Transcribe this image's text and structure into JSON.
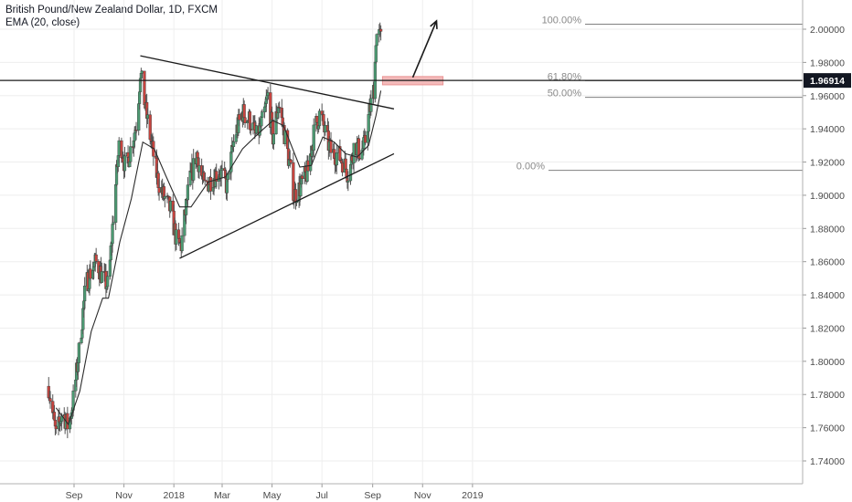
{
  "header": {
    "title": "British Pound/New Zealand Dollar, 1D, FXCM",
    "indicator": "EMA (20, close)"
  },
  "colors": {
    "up_body": "#4c9a72",
    "down_body": "#c7443f",
    "wick": "#555555",
    "ema": "#2b2b2b",
    "trendline": "#1a1a1a",
    "fib_line": "#808080",
    "price_line": "#1a1a1a",
    "price_label_bg": "#131722",
    "zone_fill": "#f2b3b3",
    "zone_stroke": "#e88a8a",
    "grid": "#eeeeee"
  },
  "chart_data": {
    "type": "candlestick",
    "symbol": "GBPNZD",
    "timeframe": "1D",
    "x_range": [
      "2017-08-01",
      "2019-02-20"
    ],
    "ylim": [
      1.728,
      2.012
    ],
    "grid": true,
    "y_ticks": [
      "1.74000",
      "1.76000",
      "1.78000",
      "1.80000",
      "1.82000",
      "1.84000",
      "1.86000",
      "1.88000",
      "1.90000",
      "1.92000",
      "1.94000",
      "1.96000",
      "1.98000",
      "2.00000"
    ],
    "x_ticks": [
      {
        "date": "2017-09-01",
        "label": "Sep"
      },
      {
        "date": "2017-11-01",
        "label": "Nov"
      },
      {
        "date": "2018-01-01",
        "label": "2018"
      },
      {
        "date": "2018-03-01",
        "label": "Mar"
      },
      {
        "date": "2018-05-01",
        "label": "May"
      },
      {
        "date": "2018-07-01",
        "label": "Jul"
      },
      {
        "date": "2018-09-01",
        "label": "Sep"
      },
      {
        "date": "2018-11-01",
        "label": "Nov"
      },
      {
        "date": "2019-01-01",
        "label": "2019"
      }
    ],
    "price_trajectory": [
      [
        "2017-08-01",
        1.785
      ],
      [
        "2017-08-10",
        1.755
      ],
      [
        "2017-08-18",
        1.77
      ],
      [
        "2017-08-25",
        1.76
      ],
      [
        "2017-09-01",
        1.78
      ],
      [
        "2017-09-08",
        1.81
      ],
      [
        "2017-09-15",
        1.845
      ],
      [
        "2017-09-22",
        1.855
      ],
      [
        "2017-09-29",
        1.86
      ],
      [
        "2017-10-06",
        1.85
      ],
      [
        "2017-10-13",
        1.845
      ],
      [
        "2017-10-20",
        1.895
      ],
      [
        "2017-10-27",
        1.935
      ],
      [
        "2017-11-03",
        1.915
      ],
      [
        "2017-11-10",
        1.93
      ],
      [
        "2017-11-17",
        1.945
      ],
      [
        "2017-11-21",
        1.975
      ],
      [
        "2017-11-28",
        1.95
      ],
      [
        "2017-12-05",
        1.93
      ],
      [
        "2017-12-12",
        1.91
      ],
      [
        "2017-12-19",
        1.9
      ],
      [
        "2017-12-29",
        1.89
      ],
      [
        "2018-01-05",
        1.87
      ],
      [
        "2018-01-10",
        1.87
      ],
      [
        "2018-01-19",
        1.905
      ],
      [
        "2018-01-29",
        1.925
      ],
      [
        "2018-02-07",
        1.905
      ],
      [
        "2018-02-16",
        1.91
      ],
      [
        "2018-02-26",
        1.915
      ],
      [
        "2018-03-07",
        1.905
      ],
      [
        "2018-03-16",
        1.935
      ],
      [
        "2018-03-26",
        1.95
      ],
      [
        "2018-04-04",
        1.945
      ],
      [
        "2018-04-12",
        1.935
      ],
      [
        "2018-04-20",
        1.945
      ],
      [
        "2018-04-26",
        1.96
      ],
      [
        "2018-05-02",
        1.935
      ],
      [
        "2018-05-09",
        1.955
      ],
      [
        "2018-05-15",
        1.94
      ],
      [
        "2018-05-22",
        1.92
      ],
      [
        "2018-05-28",
        1.9
      ],
      [
        "2018-06-05",
        1.905
      ],
      [
        "2018-06-14",
        1.915
      ],
      [
        "2018-06-22",
        1.94
      ],
      [
        "2018-06-29",
        1.95
      ],
      [
        "2018-07-06",
        1.935
      ],
      [
        "2018-07-13",
        1.925
      ],
      [
        "2018-07-20",
        1.925
      ],
      [
        "2018-07-27",
        1.92
      ],
      [
        "2018-08-03",
        1.912
      ],
      [
        "2018-08-10",
        1.932
      ],
      [
        "2018-08-17",
        1.925
      ],
      [
        "2018-08-22",
        1.93
      ],
      [
        "2018-08-28",
        1.95
      ],
      [
        "2018-09-03",
        1.965
      ],
      [
        "2018-09-05",
        1.995
      ],
      [
        "2018-09-07",
        1.998
      ],
      [
        "2018-09-11",
        1.994
      ]
    ],
    "ema": {
      "name": "EMA (20, close)",
      "points": [
        [
          "2017-08-10",
          1.772
        ],
        [
          "2017-08-25",
          1.762
        ],
        [
          "2017-09-08",
          1.782
        ],
        [
          "2017-09-22",
          1.818
        ],
        [
          "2017-10-06",
          1.838
        ],
        [
          "2017-10-13",
          1.838
        ],
        [
          "2017-10-27",
          1.872
        ],
        [
          "2017-11-10",
          1.898
        ],
        [
          "2017-11-24",
          1.932
        ],
        [
          "2017-12-08",
          1.928
        ],
        [
          "2017-12-22",
          1.912
        ],
        [
          "2018-01-08",
          1.893
        ],
        [
          "2018-01-22",
          1.893
        ],
        [
          "2018-02-12",
          1.908
        ],
        [
          "2018-03-05",
          1.911
        ],
        [
          "2018-03-26",
          1.928
        ],
        [
          "2018-04-16",
          1.938
        ],
        [
          "2018-05-02",
          1.945
        ],
        [
          "2018-05-15",
          1.942
        ],
        [
          "2018-06-04",
          1.917
        ],
        [
          "2018-06-18",
          1.918
        ],
        [
          "2018-07-02",
          1.935
        ],
        [
          "2018-07-16",
          1.932
        ],
        [
          "2018-07-30",
          1.925
        ],
        [
          "2018-08-13",
          1.923
        ],
        [
          "2018-08-27",
          1.93
        ],
        [
          "2018-09-05",
          1.948
        ],
        [
          "2018-09-11",
          1.963
        ]
      ]
    },
    "trendlines": [
      {
        "from": [
          "2017-11-21",
          1.984
        ],
        "to": [
          "2018-09-27",
          1.952
        ]
      },
      {
        "from": [
          "2018-01-08",
          1.862
        ],
        "to": [
          "2018-09-27",
          1.925
        ]
      }
    ],
    "fibonacci": [
      {
        "label": "100.00%",
        "value": 2.003
      },
      {
        "label": "61.80%",
        "value": 1.969
      },
      {
        "label": "50.00%",
        "value": 1.959
      },
      {
        "label": "0.00%",
        "value": 1.915
      }
    ],
    "horizontal_level": 1.96914,
    "current_price_label": "1.96914",
    "zone": {
      "from": "2018-09-13",
      "to": "2018-11-26",
      "low": 1.9665,
      "high": 1.9715
    },
    "arrow": {
      "from": [
        "2018-10-20",
        1.971
      ],
      "to": [
        "2018-11-18",
        2.005
      ]
    }
  }
}
